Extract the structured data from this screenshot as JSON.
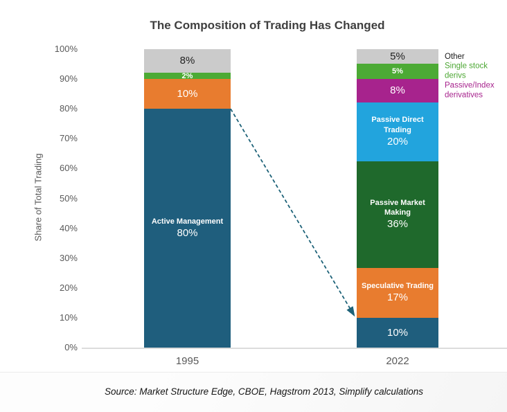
{
  "title": "The Composition of Trading Has Changed",
  "y_axis": {
    "label": "Share of Total Trading",
    "ticks": [
      "100%",
      "90%",
      "80%",
      "70%",
      "60%",
      "50%",
      "40%",
      "30%",
      "20%",
      "10%",
      "0%"
    ]
  },
  "x_axis": {
    "categories": [
      "1995",
      "2022"
    ]
  },
  "source": "Source: Market Structure Edge, CBOE, Hagstrom 2013, Simplify calculations",
  "legend": [
    {
      "label": "Other",
      "color": "#1a1a1a"
    },
    {
      "label": "Single stock derivs",
      "color": "#4ca733"
    },
    {
      "label": "Passive/Index derivatives",
      "color": "#a7238d"
    }
  ],
  "annotation_arrow": {
    "description": "Dashed arrow from the 80% level of the 1995 bar to the 10% level of the 2022 bar",
    "from_category": "1995",
    "from_level": 80,
    "to_category": "2022",
    "to_level": 10,
    "color": "#1d6278",
    "style": "dashed"
  },
  "bars": [
    {
      "category": "1995",
      "segments_bottom_to_top": [
        {
          "label": "Active Management",
          "value": 80,
          "value_label": "80%",
          "color": "#1f5e7d",
          "text_color": "#ffffff"
        },
        {
          "value": 10,
          "value_label": "10%",
          "color": "#e87c2f",
          "text_color": "#ffffff"
        },
        {
          "value": 2,
          "value_label": "2%",
          "color": "#4caa35",
          "text_color": "#ffffff",
          "small": true
        },
        {
          "value": 8,
          "value_label": "8%",
          "color": "#cbcbcb",
          "text_color": "#222222"
        }
      ]
    },
    {
      "category": "2022",
      "segments_bottom_to_top": [
        {
          "value": 10,
          "value_label": "10%",
          "color": "#1f5e7d",
          "text_color": "#ffffff"
        },
        {
          "label": "Speculative Trading",
          "value": 17,
          "value_label": "17%",
          "color": "#e87c2f",
          "text_color": "#ffffff"
        },
        {
          "label": "Passive Market Making",
          "value": 36,
          "value_label": "36%",
          "color": "#1f692c",
          "text_color": "#ffffff"
        },
        {
          "label": "Passive Direct Trading",
          "value": 20,
          "value_label": "20%",
          "color": "#22a4dd",
          "text_color": "#ffffff"
        },
        {
          "value": 8,
          "value_label": "8%",
          "color": "#a7238d",
          "text_color": "#ffffff"
        },
        {
          "value": 5,
          "value_label": "5%",
          "color": "#4caa35",
          "text_color": "#ffffff",
          "small": true
        },
        {
          "value": 5,
          "value_label": "5%",
          "color": "#cbcbcb",
          "text_color": "#222222"
        }
      ]
    }
  ],
  "chart_data": {
    "type": "bar",
    "stacked": true,
    "categories": [
      "1995",
      "2022"
    ],
    "series": [
      {
        "name": "Active Management",
        "values": [
          80,
          10
        ],
        "color": "#1f5e7d"
      },
      {
        "name": "Speculative Trading",
        "values": [
          10,
          17
        ],
        "color": "#e87c2f"
      },
      {
        "name": "Passive Market Making",
        "values": [
          0,
          36
        ],
        "color": "#1f692c"
      },
      {
        "name": "Passive Direct Trading",
        "values": [
          0,
          20
        ],
        "color": "#22a4dd"
      },
      {
        "name": "Passive/Index derivatives",
        "values": [
          0,
          8
        ],
        "color": "#a7238d"
      },
      {
        "name": "Single stock derivs",
        "values": [
          2,
          5
        ],
        "color": "#4caa35"
      },
      {
        "name": "Other",
        "values": [
          8,
          5
        ],
        "color": "#cbcbcb"
      }
    ],
    "title": "The Composition of Trading Has Changed",
    "xlabel": "",
    "ylabel": "Share of Total Trading",
    "ylim": [
      0,
      100
    ],
    "y_tick_step": 10,
    "grid": false,
    "legend_position": "right of 2022 bar, top segments",
    "annotation": "Dashed teal arrow from 80% level of 1995 bar down to 10% level of 2022 bar"
  }
}
